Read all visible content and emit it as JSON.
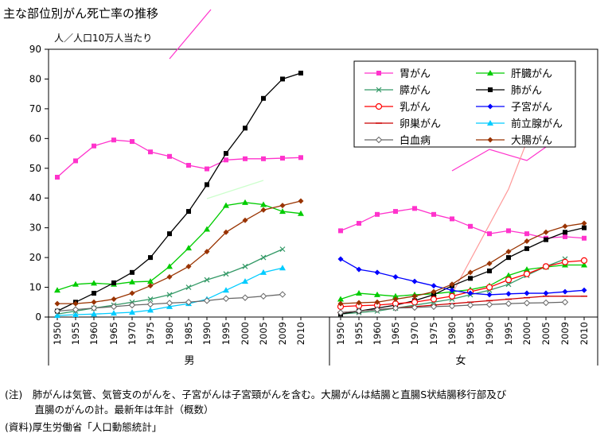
{
  "page": {
    "title": "主な部位別がん死亡率の推移",
    "unit_label": "人／人口10万人当たり",
    "note_line1": "(注)　肺がんは気管、気管支のがんを、子宮がんは子宮頸がんを含む。大腸がんは結腸と直腸S状結腸移行部及び",
    "note_line2": "　　　直腸のがんの計。最新年は年計（概数）",
    "source": "(資料)厚生労働省「人口動態統計」"
  },
  "chart_data": {
    "type": "line",
    "title": "主な部位別がん死亡率の推移",
    "ylabel": "人／人口10万人当たり",
    "ylim": [
      0,
      90
    ],
    "yticks": [
      0,
      10,
      20,
      30,
      40,
      50,
      60,
      70,
      80,
      90
    ],
    "grid": false,
    "legend_position": "top-right",
    "groups": [
      "男",
      "女"
    ],
    "x": [
      "1950",
      "1955",
      "1960",
      "1965",
      "1970",
      "1975",
      "1980",
      "1985",
      "1990",
      "1995",
      "2000",
      "2005",
      "2009",
      "2010"
    ],
    "series": [
      {
        "name": "胃がん",
        "color": "#ff33cc",
        "marker": "square",
        "male": [
          47,
          52.5,
          57.5,
          59.5,
          59,
          55.5,
          54,
          51,
          49.8,
          52.8,
          53.2,
          53.2,
          53.4,
          53.6
        ],
        "female": [
          29,
          31.5,
          34.5,
          35.5,
          36.5,
          34.5,
          33,
          30.5,
          28,
          29,
          28,
          26.5,
          27,
          26.5
        ]
      },
      {
        "name": "肝臓がん",
        "color": "#00cc00",
        "marker": "triangle",
        "male": [
          9,
          11,
          11.4,
          11,
          11.8,
          12,
          17,
          23.2,
          29.5,
          37.5,
          38.5,
          37.8,
          35.5,
          34.8
        ],
        "female": [
          6,
          8,
          7.5,
          7,
          7.5,
          7.8,
          8.5,
          9.2,
          10.5,
          14,
          16,
          16.8,
          17.5,
          17.5
        ]
      },
      {
        "name": "膵がん",
        "color": "#339966",
        "marker": "x",
        "male": [
          1,
          2,
          3,
          4,
          5,
          6,
          7.5,
          10,
          12.5,
          14.5,
          17,
          20,
          22.8,
          null
        ],
        "female": [
          1,
          1.5,
          2,
          3,
          4,
          5,
          6,
          7.5,
          9,
          11,
          14,
          17,
          19.5,
          null
        ]
      },
      {
        "name": "肺がん",
        "color": "#000000",
        "marker": "square",
        "male": [
          2,
          5,
          8,
          11.5,
          15,
          20,
          28,
          35.5,
          44.5,
          55,
          63.5,
          73.5,
          80,
          82
        ],
        "female": [
          1,
          2,
          3,
          4,
          5.5,
          7.5,
          10.5,
          13,
          15.5,
          20,
          23,
          26,
          28.5,
          30
        ]
      },
      {
        "name": "乳がん",
        "color": "#ff0000",
        "marker": "circle",
        "male": [],
        "female": [
          3.5,
          3.8,
          4,
          4.5,
          5,
          6,
          7,
          8.5,
          10,
          12.5,
          14.5,
          17,
          18.5,
          19
        ]
      },
      {
        "name": "子宮がん",
        "color": "#0000ff",
        "marker": "diamond",
        "male": [],
        "female": [
          19.5,
          16,
          15,
          13.5,
          12,
          10.5,
          9,
          8,
          7.5,
          7.8,
          8,
          8,
          8.5,
          9
        ]
      },
      {
        "name": "卵巣がん",
        "color": "#cc0000",
        "marker": "dash",
        "male": [],
        "female": [
          1.5,
          2,
          2.5,
          3,
          3.5,
          4,
          4.5,
          5,
          5.5,
          6,
          6.5,
          7,
          7,
          7
        ]
      },
      {
        "name": "前立腺がん",
        "color": "#00ccff",
        "marker": "triangle",
        "male": [
          0.5,
          0.8,
          1,
          1.3,
          1.6,
          2.3,
          3.5,
          4.5,
          6,
          9,
          12,
          15,
          16.5,
          null
        ],
        "female": []
      },
      {
        "name": "白血病",
        "color": "#666666",
        "marker": "diamond-open",
        "male": [
          2,
          2.5,
          3,
          3.5,
          4,
          4.3,
          4.7,
          5,
          5.5,
          6.2,
          6.5,
          7,
          7.6,
          null
        ],
        "female": [
          1.5,
          2,
          2.5,
          3,
          3.2,
          3.5,
          3.7,
          4,
          4.2,
          4.5,
          4.7,
          4.8,
          5,
          null
        ]
      },
      {
        "name": "大腸がん",
        "color": "#993300",
        "marker": "diamond",
        "male": [
          4.5,
          4.5,
          5,
          6,
          8,
          10.5,
          13.5,
          17,
          22,
          28.5,
          32.5,
          36,
          37.5,
          39
        ],
        "female": [
          4.5,
          4.8,
          5,
          6,
          7,
          8.5,
          11,
          15,
          18,
          22,
          25.5,
          28.5,
          30.5,
          31.5
        ]
      }
    ]
  }
}
